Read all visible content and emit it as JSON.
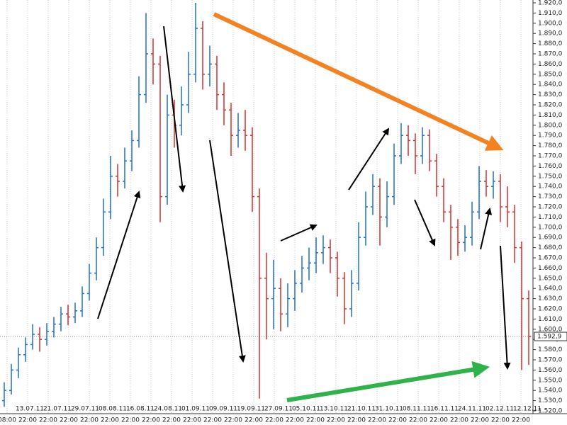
{
  "chart_data": {
    "type": "ohlc",
    "up_color": "#1f6fd0",
    "down_color": "#d0312d",
    "grid": true,
    "ylim": [
      1520,
      1920
    ],
    "yticks": [
      {
        "value": 1520,
        "label": "1.520,0"
      },
      {
        "value": 1530,
        "label": "1.530,0"
      },
      {
        "value": 1540,
        "label": "1.540,0"
      },
      {
        "value": 1550,
        "label": "1.550,0"
      },
      {
        "value": 1560,
        "label": "1.560,0"
      },
      {
        "value": 1570,
        "label": "1.570,0"
      },
      {
        "value": 1580,
        "label": "1.580,0"
      },
      {
        "value": 1590,
        "label": "1.590,0"
      },
      {
        "value": 1600,
        "label": "1.600,0"
      },
      {
        "value": 1610,
        "label": "1.610,0"
      },
      {
        "value": 1620,
        "label": "1.620,0"
      },
      {
        "value": 1630,
        "label": "1.630,0"
      },
      {
        "value": 1640,
        "label": "1.640,0"
      },
      {
        "value": 1650,
        "label": "1.650,0"
      },
      {
        "value": 1660,
        "label": "1.660,0"
      },
      {
        "value": 1670,
        "label": "1.670,0"
      },
      {
        "value": 1680,
        "label": "1.680,0"
      },
      {
        "value": 1690,
        "label": "1.690,0"
      },
      {
        "value": 1700,
        "label": "1.700,0"
      },
      {
        "value": 1710,
        "label": "1.710,0"
      },
      {
        "value": 1720,
        "label": "1.720,0"
      },
      {
        "value": 1730,
        "label": "1.730,0"
      },
      {
        "value": 1740,
        "label": "1.740,0"
      },
      {
        "value": 1750,
        "label": "1.750,0"
      },
      {
        "value": 1760,
        "label": "1.760,0"
      },
      {
        "value": 1770,
        "label": "1.770,0"
      },
      {
        "value": 1780,
        "label": "1.780,0"
      },
      {
        "value": 1790,
        "label": "1.790,0"
      },
      {
        "value": 1800,
        "label": "1.800,0"
      },
      {
        "value": 1810,
        "label": "1.810,0"
      },
      {
        "value": 1820,
        "label": "1.820,0"
      },
      {
        "value": 1830,
        "label": "1.830,0"
      },
      {
        "value": 1840,
        "label": "1.840,0"
      },
      {
        "value": 1850,
        "label": "1.850,0"
      },
      {
        "value": 1860,
        "label": "1.860,0"
      },
      {
        "value": 1870,
        "label": "1.870,0"
      },
      {
        "value": 1880,
        "label": "1.880,0"
      },
      {
        "value": 1890,
        "label": "1.890,0"
      },
      {
        "value": 1900,
        "label": "1.900,0"
      },
      {
        "value": 1910,
        "label": "1.910,0"
      },
      {
        "value": 1920,
        "label": "1.920,0"
      }
    ],
    "last_price": {
      "value": 1592.9,
      "label": "1.592,9"
    },
    "dates": [
      "13.07.11",
      "21.07.11",
      "29.07.11",
      "08.08.11",
      "16.08.11",
      "24.08.11",
      "01.09.11",
      "09.09.11",
      "19.09.11",
      "27.09.11",
      "05.10.11",
      "13.10.11",
      "21.10.11",
      "31.10.11",
      "08.11.11",
      "16.11.11",
      "24.11.11",
      "02.12.11",
      "12.12.11"
    ],
    "times": [
      "08:00",
      "22:00",
      "22:00",
      "22:00",
      "22:00",
      "22:00",
      "22:00",
      "22:00",
      "22:00",
      "22:00",
      "22:00",
      "22:00",
      "22:00",
      "22:00",
      "22:00",
      "22:00",
      "22:00",
      "22:00",
      "22:00",
      "22:00",
      "22:00",
      "22:00",
      "22:00",
      "22:00",
      "22:00",
      "22:00"
    ],
    "ohlc": [
      [
        1530,
        1548,
        1524,
        1540
      ],
      [
        1540,
        1566,
        1536,
        1560
      ],
      [
        1560,
        1582,
        1552,
        1575
      ],
      [
        1575,
        1592,
        1568,
        1585
      ],
      [
        1585,
        1605,
        1580,
        1595
      ],
      [
        1595,
        1602,
        1578,
        1590
      ],
      [
        1590,
        1606,
        1584,
        1598
      ],
      [
        1598,
        1612,
        1592,
        1605
      ],
      [
        1605,
        1622,
        1598,
        1615
      ],
      [
        1615,
        1624,
        1604,
        1612
      ],
      [
        1612,
        1626,
        1606,
        1618
      ],
      [
        1618,
        1642,
        1612,
        1635
      ],
      [
        1635,
        1664,
        1628,
        1655
      ],
      [
        1655,
        1690,
        1648,
        1680
      ],
      [
        1680,
        1728,
        1672,
        1715
      ],
      [
        1715,
        1770,
        1708,
        1750
      ],
      [
        1750,
        1762,
        1730,
        1745
      ],
      [
        1745,
        1778,
        1738,
        1765
      ],
      [
        1765,
        1795,
        1755,
        1785
      ],
      [
        1785,
        1848,
        1778,
        1830
      ],
      [
        1830,
        1910,
        1822,
        1870
      ],
      [
        1870,
        1885,
        1840,
        1860
      ],
      [
        1860,
        1868,
        1705,
        1730
      ],
      [
        1730,
        1830,
        1722,
        1810
      ],
      [
        1810,
        1825,
        1778,
        1800
      ],
      [
        1800,
        1838,
        1790,
        1820
      ],
      [
        1820,
        1872,
        1812,
        1850
      ],
      [
        1850,
        1920,
        1842,
        1895
      ],
      [
        1895,
        1902,
        1835,
        1850
      ],
      [
        1850,
        1878,
        1838,
        1860
      ],
      [
        1860,
        1868,
        1815,
        1830
      ],
      [
        1830,
        1842,
        1800,
        1815
      ],
      [
        1815,
        1822,
        1770,
        1790
      ],
      [
        1790,
        1812,
        1778,
        1795
      ],
      [
        1795,
        1815,
        1775,
        1790
      ],
      [
        1790,
        1798,
        1715,
        1730
      ],
      [
        1730,
        1738,
        1532,
        1650
      ],
      [
        1650,
        1675,
        1590,
        1630
      ],
      [
        1630,
        1668,
        1600,
        1640
      ],
      [
        1640,
        1650,
        1598,
        1615
      ],
      [
        1615,
        1645,
        1602,
        1630
      ],
      [
        1630,
        1658,
        1618,
        1645
      ],
      [
        1645,
        1672,
        1636,
        1660
      ],
      [
        1660,
        1680,
        1648,
        1665
      ],
      [
        1665,
        1690,
        1655,
        1675
      ],
      [
        1675,
        1692,
        1664,
        1680
      ],
      [
        1680,
        1688,
        1655,
        1670
      ],
      [
        1670,
        1676,
        1632,
        1650
      ],
      [
        1650,
        1656,
        1605,
        1620
      ],
      [
        1620,
        1658,
        1612,
        1645
      ],
      [
        1645,
        1705,
        1638,
        1690
      ],
      [
        1690,
        1735,
        1682,
        1720
      ],
      [
        1720,
        1752,
        1712,
        1740
      ],
      [
        1740,
        1748,
        1682,
        1710
      ],
      [
        1710,
        1745,
        1700,
        1730
      ],
      [
        1730,
        1782,
        1722,
        1770
      ],
      [
        1770,
        1802,
        1762,
        1790
      ],
      [
        1790,
        1800,
        1770,
        1785
      ],
      [
        1785,
        1792,
        1752,
        1770
      ],
      [
        1770,
        1798,
        1762,
        1790
      ],
      [
        1790,
        1796,
        1755,
        1765
      ],
      [
        1765,
        1772,
        1730,
        1740
      ],
      [
        1740,
        1748,
        1705,
        1715
      ],
      [
        1715,
        1722,
        1668,
        1700
      ],
      [
        1700,
        1708,
        1672,
        1685
      ],
      [
        1685,
        1702,
        1676,
        1690
      ],
      [
        1690,
        1725,
        1682,
        1715
      ],
      [
        1715,
        1760,
        1708,
        1745
      ],
      [
        1745,
        1756,
        1730,
        1740
      ],
      [
        1740,
        1755,
        1728,
        1745
      ],
      [
        1745,
        1752,
        1705,
        1720
      ],
      [
        1720,
        1740,
        1700,
        1715
      ],
      [
        1715,
        1722,
        1665,
        1680
      ],
      [
        1680,
        1686,
        1560,
        1630
      ],
      [
        1630,
        1638,
        1565,
        1592.9
      ]
    ]
  }
}
